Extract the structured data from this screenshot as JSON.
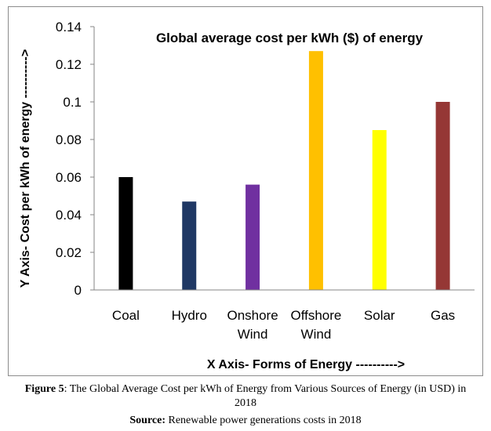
{
  "chart_data": {
    "type": "bar",
    "title": "Global average cost per kWh ($) of energy",
    "xlabel": "X Axis- Forms of Energy ---------->",
    "ylabel": "Y Axis- Cost per kWh of energy ---------->",
    "categories": [
      [
        "Coal"
      ],
      [
        "Hydro"
      ],
      [
        "Onshore",
        "Wind"
      ],
      [
        "Offshore",
        "Wind"
      ],
      [
        "Solar"
      ],
      [
        "Gas"
      ]
    ],
    "values": [
      0.06,
      0.047,
      0.056,
      0.127,
      0.085,
      0.1
    ],
    "colors": [
      "#000000",
      "#1f3864",
      "#7030a0",
      "#ffc000",
      "#ffff00",
      "#953735"
    ],
    "ylim": [
      0,
      0.14
    ],
    "yticks": [
      "0",
      "0.02",
      "0.04",
      "0.06",
      "0.08",
      "0.1",
      "0.12",
      "0.14"
    ],
    "grid": false,
    "legend": "none"
  },
  "caption": {
    "figure_label": "Figure 5",
    "figure_text": ": The Global Average Cost per kWh of Energy from Various Sources of Energy (in USD) in 2018",
    "source_label": "Source:",
    "source_text": " Renewable power generations costs in 2018"
  }
}
